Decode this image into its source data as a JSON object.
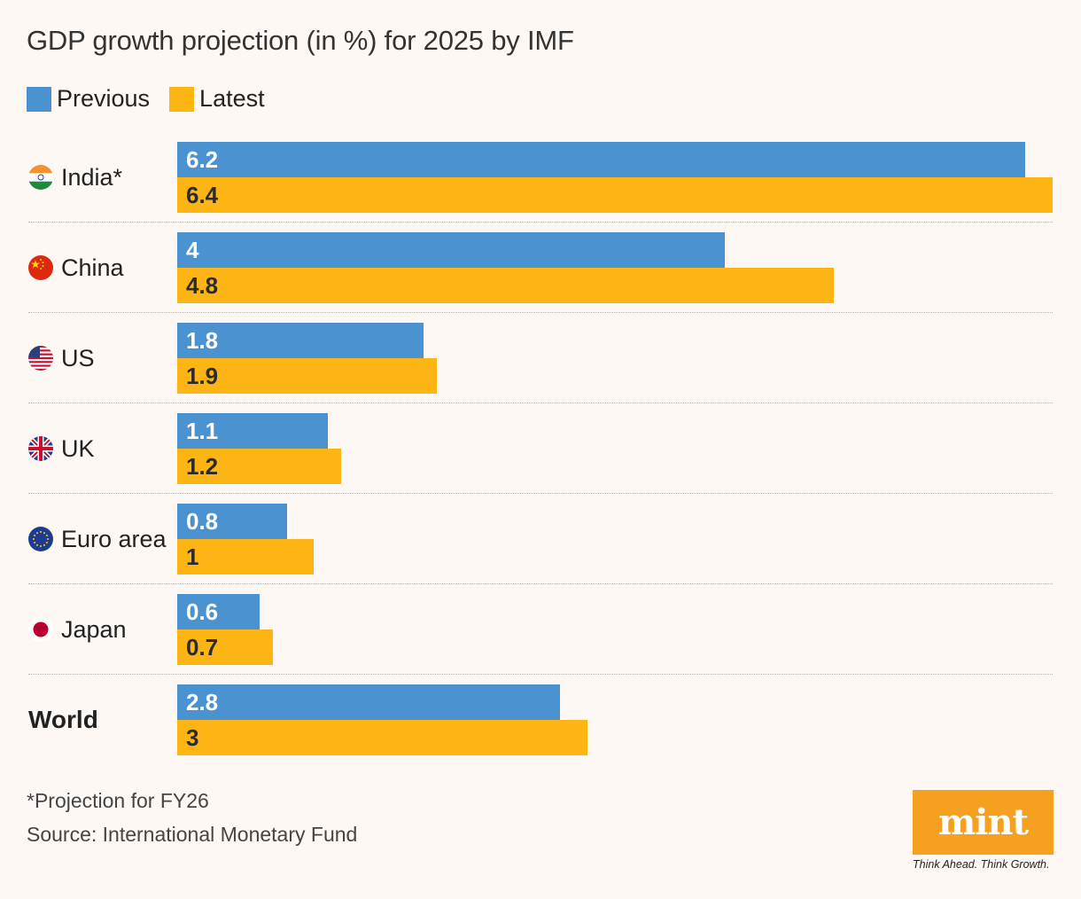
{
  "title": "GDP growth projection (in %) for 2025 by IMF",
  "colors": {
    "previous": "#4b93d0",
    "latest": "#fdb515"
  },
  "legend": {
    "previous": "Previous",
    "latest": "Latest"
  },
  "chart_data": {
    "type": "bar",
    "orientation": "horizontal",
    "title": "GDP growth projection (in %) for 2025 by IMF",
    "categories": [
      "India*",
      "China",
      "US",
      "UK",
      "Euro area",
      "Japan",
      "World"
    ],
    "series": [
      {
        "name": "Previous",
        "values": [
          6.2,
          4,
          1.8,
          1.1,
          0.8,
          0.6,
          2.8
        ],
        "labels": [
          "6.2",
          "4",
          "1.8",
          "1.1",
          "0.8",
          "0.6",
          "2.8"
        ]
      },
      {
        "name": "Latest",
        "values": [
          6.4,
          4.8,
          1.9,
          1.2,
          1,
          0.7,
          3
        ],
        "labels": [
          "6.4",
          "4.8",
          "1.9",
          "1.2",
          "1",
          "0.7",
          "3"
        ]
      }
    ],
    "flag_icons": [
      "india-flag-icon",
      "china-flag-icon",
      "us-flag-icon",
      "uk-flag-icon",
      "eu-flag-icon",
      "japan-flag-icon",
      ""
    ],
    "xlim": [
      0,
      6.4
    ],
    "grid": false,
    "legend_position": "top-left"
  },
  "footnote": "*Projection for FY26",
  "source": "Source: International Monetary Fund",
  "logo": {
    "text": "mint",
    "tagline": "Think Ahead. Think Growth."
  }
}
